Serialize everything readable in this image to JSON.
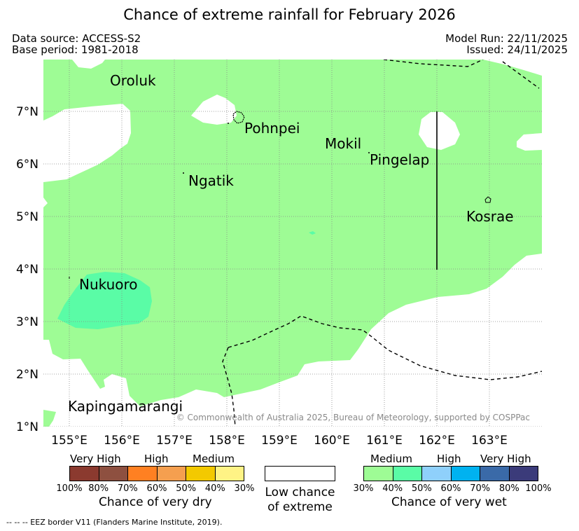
{
  "title": "Chance of extreme rainfall for February 2026",
  "meta": {
    "data_source": "Data source: ACCESS-S2",
    "base_period": "Base period: 1981-2018",
    "model_run": "Model Run: 22/11/2025",
    "issued": "Issued: 24/11/2025"
  },
  "map": {
    "lon_ticks": [
      "155°E",
      "156°E",
      "157°E",
      "158°E",
      "159°E",
      "160°E",
      "161°E",
      "162°E",
      "163°E"
    ],
    "lat_ticks": [
      "7°N",
      "6°N",
      "5°N",
      "4°N",
      "3°N",
      "2°N",
      "1°N"
    ],
    "places": {
      "oroluk": "Oroluk",
      "pohnpei": "Pohnpei",
      "mokil": "Mokil",
      "pingelap": "Pingelap",
      "ngatik": "Ngatik",
      "kosrae": "Kosrae",
      "nukuoro": "Nukuoro",
      "kapingamarangi": "Kapingamarangi"
    },
    "copyright": "© Commonwealth of Australia 2025, Bureau of Meteorology, supported by COSPPac",
    "colors": {
      "wet_medium": "#9efc95",
      "wet_medium_high": "#5afca6",
      "low": "#ffffff"
    }
  },
  "legend": {
    "dry": {
      "headings": [
        "Very High",
        "High",
        "Medium"
      ],
      "colors": [
        "#8b3a2f",
        "#8e5040",
        "#ff8022",
        "#f59f4f",
        "#f3c900",
        "#fff385"
      ],
      "ticks": [
        "100%",
        "80%",
        "70%",
        "60%",
        "50%",
        "40%",
        "30%"
      ],
      "caption": "Chance of very dry"
    },
    "low": {
      "caption_line1": "Low chance",
      "caption_line2": "of extreme"
    },
    "wet": {
      "headings": [
        "Medium",
        "High",
        "Very High"
      ],
      "colors": [
        "#9efc95",
        "#5afca6",
        "#8fd0fb",
        "#00b2f0",
        "#3a6aa8",
        "#3b3b7a"
      ],
      "ticks": [
        "30%",
        "40%",
        "50%",
        "60%",
        "70%",
        "80%",
        "100%"
      ],
      "caption": "Chance of very wet"
    }
  },
  "eez_note": "--  --  -- EEZ border V11 (Flanders Marine Institute, 2019)."
}
